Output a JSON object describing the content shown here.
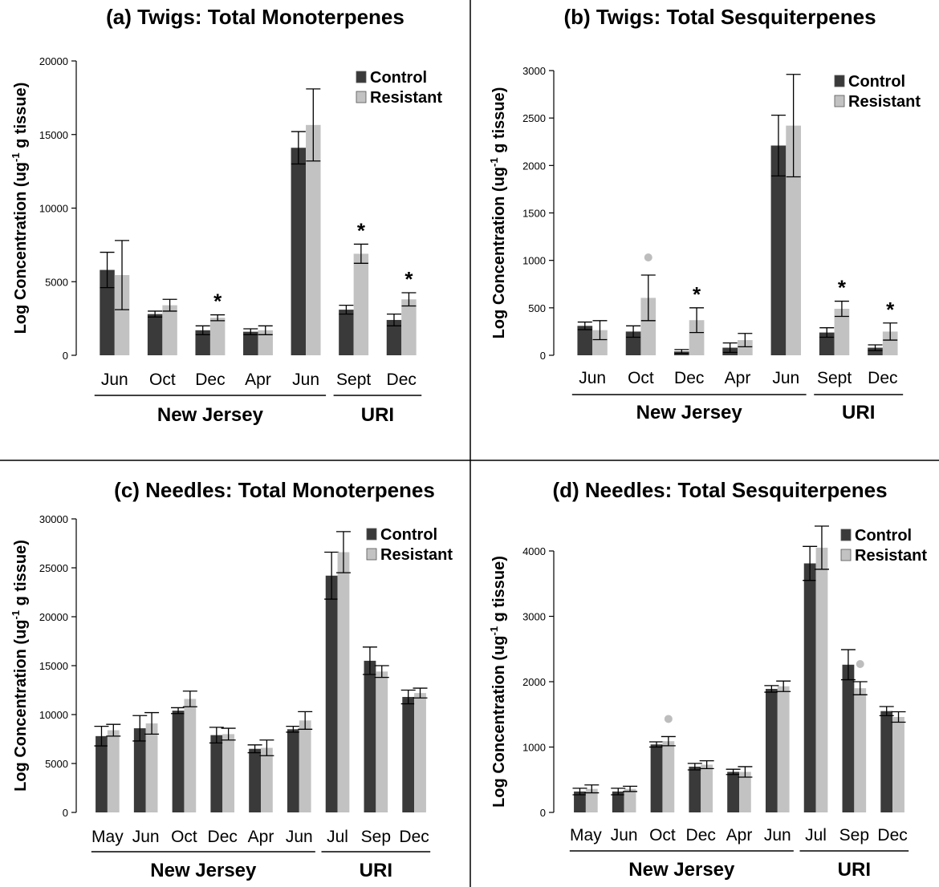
{
  "colors": {
    "control": "#3a3a3a",
    "resistant": "#c2c2c2",
    "marker": "#bdbdbd"
  },
  "legend": {
    "control": "Control",
    "resistant": "Resistant"
  },
  "chart_data": [
    {
      "type": "bar",
      "title": "(a) Twigs: Total Monoterpenes",
      "ylabel": "Log Concentration (ug-1 g tissue)",
      "ylim": [
        0,
        20000
      ],
      "yticks": [
        0,
        5000,
        10000,
        15000,
        20000
      ],
      "categories": [
        "Jun",
        "Oct",
        "Dec",
        "Apr",
        "Jun",
        "Sept",
        "Dec"
      ],
      "groups": [
        {
          "label": "New Jersey",
          "from": 0,
          "to": 4
        },
        {
          "label": "URI",
          "from": 5,
          "to": 6
        }
      ],
      "series": [
        {
          "name": "Control",
          "values": [
            5800,
            2800,
            1700,
            1600,
            14100,
            3100,
            2400
          ],
          "errors": [
            1200,
            200,
            300,
            200,
            1100,
            300,
            400
          ]
        },
        {
          "name": "Resistant",
          "values": [
            5450,
            3400,
            2550,
            1700,
            15650,
            6900,
            3800
          ],
          "errors": [
            2350,
            400,
            200,
            300,
            2450,
            650,
            450
          ]
        }
      ],
      "annotations": [
        {
          "index": 2,
          "series": "Resistant",
          "mark": "*"
        },
        {
          "index": 5,
          "series": "Resistant",
          "mark": "*"
        },
        {
          "index": 6,
          "series": "Resistant",
          "mark": "*"
        }
      ]
    },
    {
      "type": "bar",
      "title": "(b) Twigs: Total Sesquiterpenes",
      "ylabel": "Log Concentration (ug-1 g tissue)",
      "ylim": [
        0,
        3000
      ],
      "yticks": [
        0,
        500,
        1000,
        1500,
        2000,
        2500,
        3000
      ],
      "categories": [
        "Jun",
        "Oct",
        "Dec",
        "Apr",
        "Jun",
        "Sept",
        "Dec"
      ],
      "groups": [
        {
          "label": "New Jersey",
          "from": 0,
          "to": 4
        },
        {
          "label": "URI",
          "from": 5,
          "to": 6
        }
      ],
      "series": [
        {
          "name": "Control",
          "values": [
            310,
            250,
            40,
            80,
            2210,
            240,
            80
          ],
          "errors": [
            40,
            60,
            20,
            50,
            320,
            50,
            30
          ]
        },
        {
          "name": "Resistant",
          "values": [
            265,
            605,
            370,
            160,
            2420,
            490,
            250
          ],
          "errors": [
            100,
            240,
            130,
            70,
            540,
            80,
            90
          ]
        }
      ],
      "annotations": [
        {
          "index": 1,
          "series": "Resistant",
          "mark": "dot"
        },
        {
          "index": 2,
          "series": "Resistant",
          "mark": "*"
        },
        {
          "index": 5,
          "series": "Resistant",
          "mark": "*"
        },
        {
          "index": 6,
          "series": "Resistant",
          "mark": "*"
        }
      ]
    },
    {
      "type": "bar",
      "title": "(c) Needles: Total Monoterpenes",
      "ylabel": "Log Concentration (ug-1 g tissue)",
      "ylim": [
        0,
        30000
      ],
      "yticks": [
        0,
        5000,
        10000,
        15000,
        20000,
        25000,
        30000
      ],
      "categories": [
        "May",
        "Jun",
        "Oct",
        "Dec",
        "Apr",
        "Jun",
        "Jul",
        "Sep",
        "Dec"
      ],
      "groups": [
        {
          "label": "New Jersey",
          "from": 0,
          "to": 5
        },
        {
          "label": "URI",
          "from": 6,
          "to": 8
        }
      ],
      "series": [
        {
          "name": "Control",
          "values": [
            7800,
            8600,
            10400,
            7900,
            6500,
            8500,
            24200,
            15500,
            11800
          ],
          "errors": [
            1000,
            1300,
            300,
            800,
            400,
            300,
            2400,
            1400,
            700
          ]
        },
        {
          "name": "Resistant",
          "values": [
            8400,
            9100,
            11600,
            8000,
            6600,
            9400,
            26600,
            14400,
            12200
          ],
          "errors": [
            600,
            1100,
            800,
            600,
            800,
            900,
            2100,
            600,
            500
          ]
        }
      ],
      "annotations": []
    },
    {
      "type": "bar",
      "title": "(d) Needles: Total Sesquiterpenes",
      "ylabel": "Log Concentration (ug-1 g tissue)",
      "ylim": [
        0,
        4000
      ],
      "yticks": [
        0,
        1000,
        2000,
        3000,
        4000
      ],
      "categories": [
        "May",
        "Jun",
        "Oct",
        "Dec",
        "Apr",
        "Jun",
        "Jul",
        "Sep",
        "Dec"
      ],
      "groups": [
        {
          "label": "New Jersey",
          "from": 0,
          "to": 5
        },
        {
          "label": "URI",
          "from": 6,
          "to": 8
        }
      ],
      "series": [
        {
          "name": "Control",
          "values": [
            320,
            320,
            1040,
            700,
            620,
            1890,
            3810,
            2260,
            1550
          ],
          "errors": [
            50,
            50,
            40,
            50,
            40,
            50,
            260,
            230,
            70
          ]
        },
        {
          "name": "Resistant",
          "values": [
            360,
            360,
            1090,
            730,
            620,
            1930,
            4050,
            1900,
            1460
          ],
          "errors": [
            60,
            40,
            70,
            60,
            80,
            80,
            330,
            100,
            80
          ]
        }
      ],
      "annotations": [
        {
          "index": 2,
          "series": "Resistant",
          "mark": "dot"
        },
        {
          "index": 7,
          "series": "Resistant",
          "mark": "dot"
        }
      ]
    }
  ]
}
